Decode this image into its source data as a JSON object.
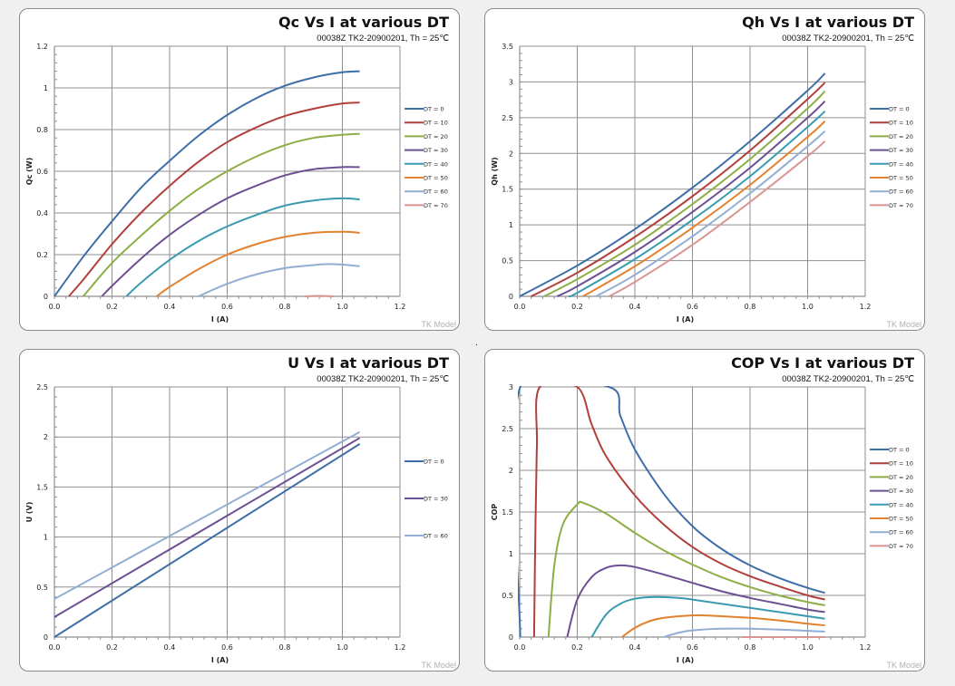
{
  "subtitle": "00038Z TK2-20900201, Th = 25℃",
  "watermark": "TK Model",
  "series_colors": {
    "DT = 0": "#3e6ea8",
    "DT = 10": "#b13f3c",
    "DT = 20": "#8cae45",
    "DT = 30": "#6d4f93",
    "DT = 40": "#3a9bb0",
    "DT = 50": "#e2822f",
    "DT = 60": "#93aed4",
    "DT = 70": "#d99593"
  },
  "chart_data": [
    {
      "type": "line",
      "title": "Qc Vs I at various DT",
      "subtitle": "00038Z TK2-20900201, Th = 25℃",
      "xlabel": "I (A)",
      "ylabel": "Qc (W)",
      "xlim": [
        0,
        1.2
      ],
      "ylim": [
        0,
        1.2
      ],
      "xticks": [
        "0.0",
        "0.2",
        "0.4",
        "0.6",
        "0.8",
        "1.0",
        "1.2"
      ],
      "yticks": [
        "0",
        "0.2",
        "0.4",
        "0.6",
        "0.8",
        "1",
        "1.2"
      ],
      "yminor": 5,
      "grid": true,
      "legend": "right",
      "series": [
        {
          "name": "DT = 0",
          "x": [
            0,
            0.1,
            0.2,
            0.3,
            0.4,
            0.5,
            0.6,
            0.7,
            0.8,
            0.9,
            1.0,
            1.06
          ],
          "y": [
            0,
            0.19,
            0.36,
            0.52,
            0.65,
            0.77,
            0.87,
            0.95,
            1.01,
            1.05,
            1.075,
            1.08
          ]
        },
        {
          "name": "DT = 10",
          "x": [
            0.05,
            0.1,
            0.2,
            0.3,
            0.4,
            0.5,
            0.6,
            0.7,
            0.8,
            0.9,
            1.0,
            1.06
          ],
          "y": [
            0,
            0.08,
            0.25,
            0.4,
            0.53,
            0.645,
            0.74,
            0.81,
            0.865,
            0.9,
            0.925,
            0.93
          ]
        },
        {
          "name": "DT = 20",
          "x": [
            0.1,
            0.2,
            0.3,
            0.4,
            0.5,
            0.6,
            0.7,
            0.8,
            0.9,
            1.0,
            1.06
          ],
          "y": [
            0,
            0.16,
            0.29,
            0.41,
            0.515,
            0.6,
            0.67,
            0.725,
            0.76,
            0.775,
            0.78
          ]
        },
        {
          "name": "DT = 30",
          "x": [
            0.165,
            0.2,
            0.3,
            0.4,
            0.5,
            0.6,
            0.7,
            0.8,
            0.9,
            1.0,
            1.06
          ],
          "y": [
            0,
            0.05,
            0.18,
            0.295,
            0.39,
            0.47,
            0.53,
            0.58,
            0.61,
            0.62,
            0.62
          ]
        },
        {
          "name": "DT = 40",
          "x": [
            0.25,
            0.3,
            0.4,
            0.5,
            0.6,
            0.7,
            0.8,
            0.9,
            1.0,
            1.06
          ],
          "y": [
            0,
            0.065,
            0.175,
            0.265,
            0.335,
            0.39,
            0.435,
            0.46,
            0.47,
            0.465
          ]
        },
        {
          "name": "DT = 50",
          "x": [
            0.355,
            0.4,
            0.5,
            0.6,
            0.7,
            0.8,
            0.9,
            1.0,
            1.06
          ],
          "y": [
            0,
            0.045,
            0.13,
            0.2,
            0.25,
            0.285,
            0.305,
            0.31,
            0.305
          ]
        },
        {
          "name": "DT = 60",
          "x": [
            0.5,
            0.6,
            0.7,
            0.8,
            0.9,
            0.95,
            1.0,
            1.06
          ],
          "y": [
            0,
            0.06,
            0.105,
            0.135,
            0.15,
            0.155,
            0.152,
            0.145
          ]
        },
        {
          "name": "DT = 70",
          "x": [
            0.87,
            0.92,
            0.97
          ],
          "y": [
            0,
            0.002,
            0
          ]
        }
      ]
    },
    {
      "type": "line",
      "title": "Qh Vs I at various DT",
      "subtitle": "00038Z TK2-20900201, Th = 25℃",
      "xlabel": "I (A)",
      "ylabel": "Qh (W)",
      "xlim": [
        0,
        1.2
      ],
      "ylim": [
        0,
        3.5
      ],
      "xticks": [
        "0.0",
        "0.2",
        "0.4",
        "0.6",
        "0.8",
        "1.0",
        "1.2"
      ],
      "yticks": [
        "0",
        "0.5",
        "1",
        "1.5",
        "2",
        "2.5",
        "3",
        "3.5"
      ],
      "yminor": 5,
      "grid": true,
      "legend": "right",
      "series": [
        {
          "name": "DT = 0",
          "x": [
            0,
            0.2,
            0.4,
            0.6,
            0.8,
            1.0,
            1.06
          ],
          "y": [
            0,
            0.43,
            0.94,
            1.52,
            2.17,
            2.88,
            3.12
          ]
        },
        {
          "name": "DT = 10",
          "x": [
            0.04,
            0.2,
            0.4,
            0.6,
            0.8,
            1.0,
            1.06
          ],
          "y": [
            0,
            0.33,
            0.83,
            1.4,
            2.04,
            2.76,
            2.99
          ]
        },
        {
          "name": "DT = 20",
          "x": [
            0.085,
            0.2,
            0.4,
            0.6,
            0.8,
            1.0,
            1.06
          ],
          "y": [
            0,
            0.24,
            0.72,
            1.29,
            1.92,
            2.63,
            2.87
          ]
        },
        {
          "name": "DT = 30",
          "x": [
            0.13,
            0.2,
            0.4,
            0.6,
            0.8,
            1.0,
            1.06
          ],
          "y": [
            0,
            0.14,
            0.62,
            1.18,
            1.8,
            2.5,
            2.73
          ]
        },
        {
          "name": "DT = 40",
          "x": [
            0.17,
            0.2,
            0.4,
            0.6,
            0.8,
            1.0,
            1.06
          ],
          "y": [
            0,
            0.05,
            0.52,
            1.07,
            1.68,
            2.37,
            2.59
          ]
        },
        {
          "name": "DT = 50",
          "x": [
            0.22,
            0.4,
            0.6,
            0.8,
            1.0,
            1.06
          ],
          "y": [
            0,
            0.42,
            0.96,
            1.56,
            2.23,
            2.45
          ]
        },
        {
          "name": "DT = 60",
          "x": [
            0.265,
            0.4,
            0.6,
            0.8,
            1.0,
            1.06
          ],
          "y": [
            0,
            0.3,
            0.84,
            1.44,
            2.1,
            2.31
          ]
        },
        {
          "name": "DT = 70",
          "x": [
            0.31,
            0.4,
            0.6,
            0.8,
            1.0,
            1.06
          ],
          "y": [
            0,
            0.2,
            0.72,
            1.32,
            1.96,
            2.17
          ]
        }
      ]
    },
    {
      "type": "line",
      "title": "U Vs I at various DT",
      "subtitle": "00038Z TK2-20900201, Th = 25℃",
      "xlabel": "I (A)",
      "ylabel": "U (V)",
      "xlim": [
        0,
        1.2
      ],
      "ylim": [
        0,
        2.5
      ],
      "xticks": [
        "0.0",
        "0.2",
        "0.4",
        "0.6",
        "0.8",
        "1.0",
        "1.2"
      ],
      "yticks": [
        "0",
        "0.5",
        "1",
        "1.5",
        "2",
        "2.5"
      ],
      "yminor": 5,
      "grid": true,
      "legend": "right",
      "series": [
        {
          "name": "DT = 0",
          "x": [
            0,
            1.06
          ],
          "y": [
            0,
            1.93
          ]
        },
        {
          "name": "DT = 30",
          "x": [
            0,
            1.06
          ],
          "y": [
            0.2,
            1.99
          ]
        },
        {
          "name": "DT = 60",
          "x": [
            0,
            1.06
          ],
          "y": [
            0.38,
            2.05
          ]
        }
      ]
    },
    {
      "type": "line",
      "title": "COP Vs I at various DT",
      "subtitle": "00038Z TK2-20900201, Th = 25℃",
      "xlabel": "I (A)",
      "ylabel": "COP",
      "xlim": [
        0,
        1.2
      ],
      "ylim": [
        0,
        3
      ],
      "xticks": [
        "0.0",
        "0.2",
        "0.4",
        "0.6",
        "0.8",
        "1.0",
        "1.2"
      ],
      "yticks": [
        "0",
        "0.5",
        "1",
        "1.5",
        "2",
        "2.5",
        "3"
      ],
      "yminor": 5,
      "grid": true,
      "legend": "right",
      "series": [
        {
          "name": "DT = 0",
          "x": [
            0.002,
            0.002,
            0.31,
            0.35,
            0.4,
            0.5,
            0.6,
            0.7,
            0.8,
            0.9,
            1.0,
            1.06
          ],
          "y": [
            0,
            3,
            3,
            2.65,
            2.25,
            1.72,
            1.33,
            1.06,
            0.86,
            0.71,
            0.59,
            0.53
          ]
        },
        {
          "name": "DT = 10",
          "x": [
            0.05,
            0.055,
            0.06,
            0.07,
            0.2,
            0.25,
            0.3,
            0.4,
            0.5,
            0.6,
            0.7,
            0.8,
            0.9,
            1.0,
            1.06
          ],
          "y": [
            0,
            1.4,
            2.3,
            3,
            3,
            2.55,
            2.17,
            1.7,
            1.35,
            1.08,
            0.88,
            0.73,
            0.61,
            0.5,
            0.45
          ]
        },
        {
          "name": "DT = 20",
          "x": [
            0.1,
            0.12,
            0.15,
            0.2,
            0.22,
            0.3,
            0.4,
            0.5,
            0.6,
            0.7,
            0.8,
            0.9,
            1.0,
            1.06
          ],
          "y": [
            0,
            0.85,
            1.35,
            1.59,
            1.61,
            1.48,
            1.25,
            1.04,
            0.87,
            0.72,
            0.6,
            0.5,
            0.42,
            0.38
          ]
        },
        {
          "name": "DT = 30",
          "x": [
            0.165,
            0.2,
            0.25,
            0.3,
            0.35,
            0.4,
            0.5,
            0.6,
            0.7,
            0.8,
            0.9,
            1.0,
            1.06
          ],
          "y": [
            0,
            0.45,
            0.72,
            0.83,
            0.86,
            0.84,
            0.75,
            0.65,
            0.55,
            0.47,
            0.4,
            0.33,
            0.3
          ]
        },
        {
          "name": "DT = 40",
          "x": [
            0.25,
            0.3,
            0.35,
            0.4,
            0.47,
            0.55,
            0.6,
            0.7,
            0.8,
            0.9,
            1.0,
            1.06
          ],
          "y": [
            0,
            0.27,
            0.4,
            0.46,
            0.48,
            0.47,
            0.45,
            0.4,
            0.35,
            0.3,
            0.25,
            0.22
          ]
        },
        {
          "name": "DT = 50",
          "x": [
            0.355,
            0.4,
            0.45,
            0.5,
            0.6,
            0.7,
            0.8,
            0.9,
            1.0,
            1.06
          ],
          "y": [
            0,
            0.11,
            0.19,
            0.23,
            0.26,
            0.25,
            0.23,
            0.2,
            0.16,
            0.14
          ]
        },
        {
          "name": "DT = 60",
          "x": [
            0.5,
            0.55,
            0.6,
            0.7,
            0.8,
            0.9,
            1.0,
            1.06
          ],
          "y": [
            0,
            0.05,
            0.08,
            0.1,
            0.1,
            0.09,
            0.075,
            0.065
          ]
        },
        {
          "name": "DT = 70",
          "x": [
            0.77,
            1.06
          ],
          "y": [
            0,
            0
          ]
        }
      ]
    }
  ]
}
